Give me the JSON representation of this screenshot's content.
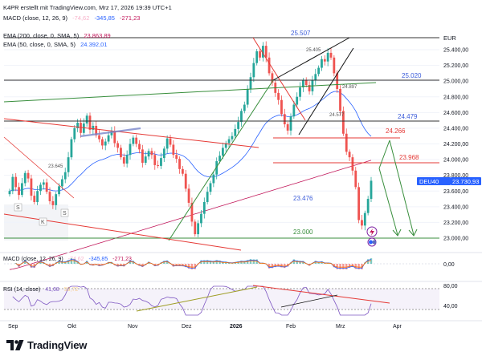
{
  "header": {
    "credit": "K4PR erstellt mit TradingView.com, Mrz 17, 2026 19:39 UTC+1",
    "macd_label": "MACD (close, 12, 26, 9)",
    "macd_v1": "-74,62",
    "macd_v2": "-345,85",
    "macd_v3": "-271,23",
    "ema200_label": "EMA (200, close, 0, SMA, 5)",
    "ema200_value": "23.863,89",
    "ema50_label": "EMA (50, close, 0, SMA, 5)",
    "ema50_value": "24.392,01",
    "ema200_color": "#c2185b",
    "ema50_color": "#2962ff"
  },
  "macd_pane": {
    "label": "MACD (close, 12, 26, 9)",
    "v1": "-74,62",
    "v2": "-345,85",
    "v3": "-271,23",
    "axis_tick": "0,00"
  },
  "rsi_pane": {
    "label": "RSI (14, close)",
    "value": "41,68",
    "value2": "59,72",
    "axis_ticks": [
      "80,00",
      "40,00"
    ]
  },
  "price_badge": {
    "symbol": "DEU40",
    "value": "23.730,93"
  },
  "currency": "EUR",
  "brand": {
    "name": "TradingView",
    "logo_icon": "tradingview-logo-icon"
  },
  "colors": {
    "up": "#26a69a",
    "down": "#ef5350",
    "green_line": "#388e3c",
    "red_line": "#e53935",
    "blue_label": "#3a5bd9"
  },
  "chart_data": {
    "type": "candlestick",
    "y_axis_ticks": [
      "25.400,00",
      "25.200,00",
      "25.000,00",
      "24.800,00",
      "24.600,00",
      "24.400,00",
      "24.200,00",
      "24.000,00",
      "23.800,00",
      "23.600,00",
      "23.400,00",
      "23.200,00",
      "23.000,00"
    ],
    "y_tick_values": [
      25400,
      25200,
      25000,
      24800,
      24600,
      24400,
      24200,
      24000,
      23800,
      23600,
      23400,
      23200,
      23000
    ],
    "x_axis_labels": [
      "Sep",
      "Okt",
      "Nov",
      "Dez",
      "2026",
      "Feb",
      "Mrz",
      "Apr"
    ],
    "level_labels": [
      "25.507",
      "25.020",
      "24.479",
      "24.266",
      "23.968",
      "23.476",
      "23.000"
    ],
    "level_values": [
      25507,
      25020,
      24479,
      24266,
      23968,
      23476,
      23000
    ],
    "small_labels": [
      "25.405",
      "24.897",
      "24.577",
      "23.645"
    ],
    "markers": [
      "S",
      "S",
      "K"
    ],
    "last_price": 23730.93,
    "closes": [
      23600,
      23780,
      23650,
      23550,
      23700,
      23830,
      23760,
      23540,
      23460,
      23600,
      23680,
      23710,
      23590,
      23470,
      23420,
      23560,
      23660,
      23750,
      23840,
      24030,
      24260,
      24400,
      24470,
      24340,
      24460,
      24560,
      24380,
      24430,
      24310,
      24260,
      24180,
      24230,
      24310,
      24360,
      24210,
      24150,
      24030,
      23950,
      24060,
      24200,
      24280,
      24200,
      24130,
      23960,
      24040,
      24110,
      24060,
      23930,
      23920,
      24020,
      24140,
      24270,
      24190,
      24060,
      24010,
      23880,
      23820,
      23630,
      23450,
      23210,
      23050,
      23190,
      23310,
      23460,
      23590,
      23700,
      23810,
      23980,
      24050,
      24150,
      24210,
      24260,
      24300,
      24390,
      24480,
      24620,
      24700,
      24900,
      25050,
      25230,
      25380,
      25300,
      25450,
      25300,
      25100,
      24980,
      24850,
      24760,
      24580,
      24450,
      24370,
      24550,
      24700,
      24800,
      24920,
      25010,
      24950,
      24870,
      25010,
      25090,
      25170,
      25280,
      25250,
      25360,
      25300,
      25100,
      24900,
      24620,
      24330,
      24100,
      24030,
      23860,
      23650,
      23230,
      23160,
      23320,
      23500,
      23731
    ]
  }
}
